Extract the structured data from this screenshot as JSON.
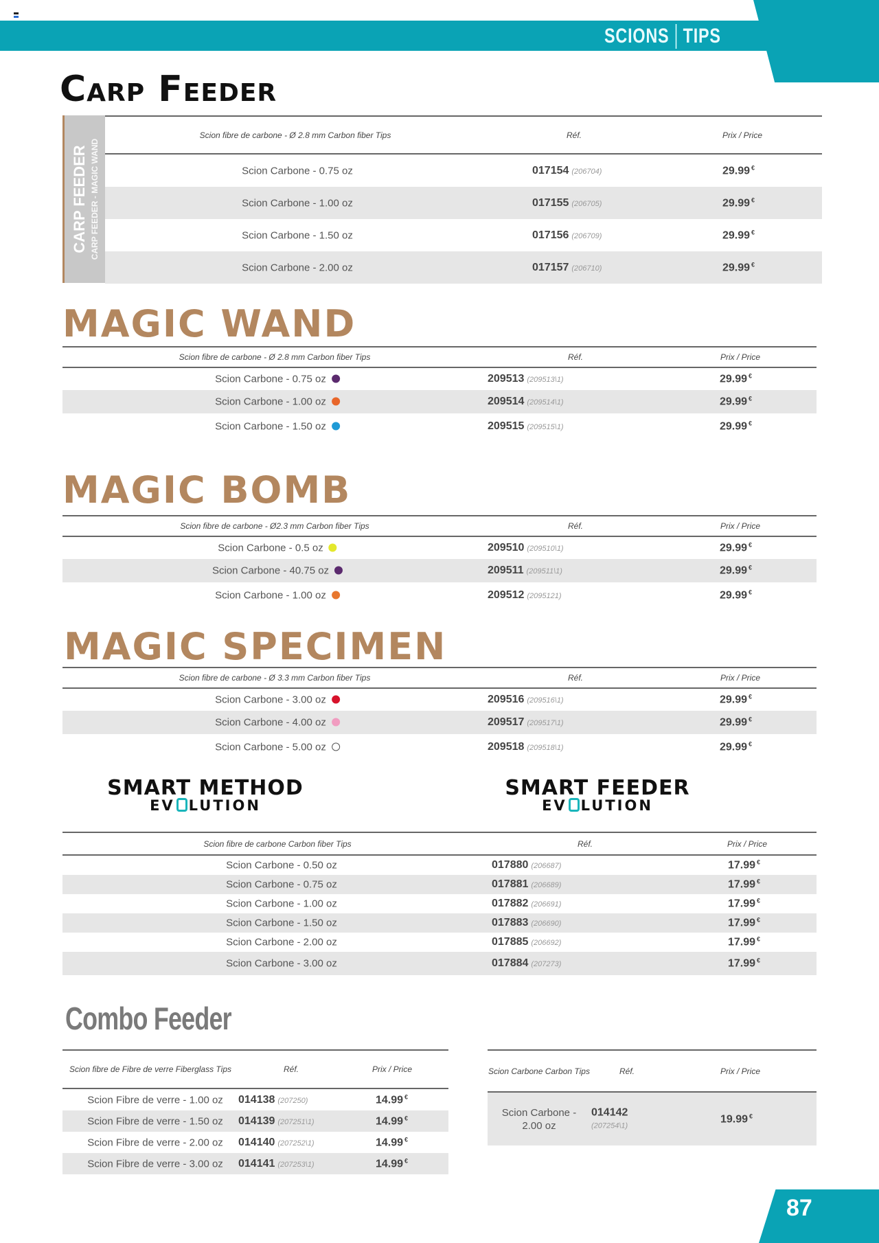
{
  "header": {
    "crumbs": [
      "SCIONS",
      "TIPS"
    ]
  },
  "page_number": "87",
  "side_tab": {
    "line1": "CARP FEEDER",
    "line2": "CARP FEEDER - MAGIC WAND"
  },
  "currency": "€",
  "colors": {
    "accent": "#0aa3b5",
    "title_tan": "#b3875f"
  },
  "sections": [
    {
      "id": "carp",
      "title": "Carp Feeder",
      "header": {
        "desc": "Scion fibre de carbone - Ø 2.8 mm Carbon fiber Tips",
        "ref": "Réf.",
        "price": "Prix / Price"
      },
      "rows": [
        {
          "desc": "Scion Carbone - 0.75 oz",
          "ref": "017154",
          "alt": "(206704)",
          "price": "29.99"
        },
        {
          "desc": "Scion Carbone - 1.00 oz",
          "ref": "017155",
          "alt": "(206705)",
          "price": "29.99"
        },
        {
          "desc": "Scion Carbone - 1.50 oz",
          "ref": "017156",
          "alt": "(206709)",
          "price": "29.99"
        },
        {
          "desc": "Scion Carbone - 2.00 oz",
          "ref": "017157",
          "alt": "(206710)",
          "price": "29.99"
        }
      ]
    },
    {
      "id": "wand",
      "title": "MAGIC WAND",
      "header": {
        "desc": "Scion fibre de carbone - Ø 2.8 mm Carbon fiber Tips",
        "ref": "Réf.",
        "price": "Prix / Price"
      },
      "rows": [
        {
          "desc": "Scion Carbone - 0.75 oz",
          "dot": "#5b2a6e",
          "ref": "209513",
          "alt": "(209513\\1)",
          "price": "29.99"
        },
        {
          "desc": "Scion Carbone - 1.00 oz",
          "dot": "#e8662a",
          "ref": "209514",
          "alt": "(209514\\1)",
          "price": "29.99"
        },
        {
          "desc": "Scion Carbone - 1.50 oz",
          "dot": "#1f9ad6",
          "ref": "209515",
          "alt": "(209515\\1)",
          "price": "29.99"
        }
      ]
    },
    {
      "id": "bomb",
      "title": "MAGIC BOMB",
      "header": {
        "desc": "Scion fibre de carbone - Ø2.3 mm Carbon fiber Tips",
        "ref": "Réf.",
        "price": "Prix / Price"
      },
      "rows": [
        {
          "desc": "Scion Carbone - 0.5 oz",
          "dot": "#e4e82c",
          "ref": "209510",
          "alt": "(209510\\1)",
          "price": "29.99"
        },
        {
          "desc": "Scion Carbone - 40.75 oz",
          "dot": "#5b2a6e",
          "ref": "209511",
          "alt": "(209511\\1)",
          "price": "29.99"
        },
        {
          "desc": "Scion Carbone - 1.00 oz",
          "dot": "#e8772e",
          "ref": "209512",
          "alt": "(2095121)",
          "price": "29.99"
        }
      ]
    },
    {
      "id": "spec",
      "title": "MAGIC SPECIMEN",
      "header": {
        "desc": "Scion fibre de carbone - Ø 3.3 mm Carbon fiber Tips",
        "ref": "Réf.",
        "price": "Prix / Price"
      },
      "rows": [
        {
          "desc": "Scion Carbone - 3.00 oz",
          "dot": "#d7122b",
          "ref": "209516",
          "alt": "(209516\\1)",
          "price": "29.99"
        },
        {
          "desc": "Scion Carbone - 4.00 oz",
          "dot": "#f19cc0",
          "ref": "209517",
          "alt": "(209517\\1)",
          "price": "29.99"
        },
        {
          "desc": "Scion Carbone - 5.00 oz",
          "dot": "#ffffff",
          "ref": "209518",
          "alt": "(209518\\1)",
          "price": "29.99"
        }
      ]
    },
    {
      "id": "smart",
      "logos": [
        {
          "l1": "SMART METHOD",
          "l2a": "EV",
          "l2b": "LUTION"
        },
        {
          "l1": "SMART FEEDER",
          "l2a": "EV",
          "l2b": "LUTION"
        }
      ],
      "header": {
        "desc": "Scion fibre de carbone Carbon fiber Tips",
        "ref": "Réf.",
        "price": "Prix / Price"
      },
      "rows": [
        {
          "desc": "Scion Carbone - 0.50 oz",
          "ref": "017880",
          "alt": "(206687)",
          "price": "17.99"
        },
        {
          "desc": "Scion Carbone - 0.75 oz",
          "ref": "017881",
          "alt": "(206689)",
          "price": "17.99"
        },
        {
          "desc": "Scion Carbone - 1.00 oz",
          "ref": "017882",
          "alt": "(206691)",
          "price": "17.99"
        },
        {
          "desc": "Scion Carbone - 1.50 oz",
          "ref": "017883",
          "alt": "(206690)",
          "price": "17.99"
        },
        {
          "desc": "Scion Carbone - 2.00 oz",
          "ref": "017885",
          "alt": "(206692)",
          "price": "17.99"
        },
        {
          "desc": "Scion Carbone - 3.00 oz",
          "ref": "017884",
          "alt": "(207273)",
          "price": "17.99"
        }
      ]
    },
    {
      "id": "comboL",
      "title": "Combo Feeder",
      "header": {
        "desc": "Scion fibre de Fibre de verre Fiberglass Tips",
        "ref": "Réf.",
        "price": "Prix / Price"
      },
      "rows": [
        {
          "desc": "Scion Fibre de verre - 1.00 oz",
          "ref": "014138",
          "alt": "(207250)",
          "price": "14.99"
        },
        {
          "desc": "Scion Fibre de verre - 1.50 oz",
          "ref": "014139",
          "alt": "(207251\\1)",
          "price": "14.99"
        },
        {
          "desc": "Scion Fibre de verre - 2.00 oz",
          "ref": "014140",
          "alt": "(207252\\1)",
          "price": "14.99"
        },
        {
          "desc": "Scion Fibre de verre - 3.00 oz",
          "ref": "014141",
          "alt": "(207253\\1)",
          "price": "14.99"
        }
      ]
    },
    {
      "id": "comboR",
      "header": {
        "desc": "Scion Carbone Carbon Tips",
        "ref": "Réf.",
        "price": "Prix / Price"
      },
      "rows": [
        {
          "desc": "Scion Carbone - 2.00 oz",
          "ref": "014142",
          "alt": "(207254\\1)",
          "price": "19.99"
        }
      ]
    }
  ]
}
